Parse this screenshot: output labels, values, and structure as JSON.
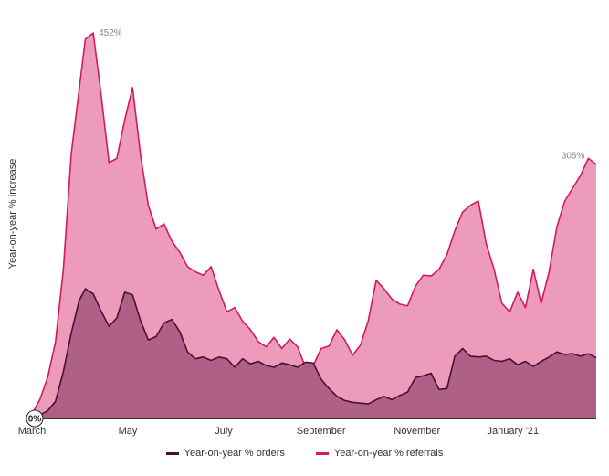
{
  "chart_data": {
    "type": "area",
    "ylabel": "Year-on-year % increase",
    "xlabel": "",
    "x_tick_labels": [
      "March",
      "May",
      "July",
      "September",
      "November",
      "January '21"
    ],
    "ylim": [
      0,
      480
    ],
    "grid": false,
    "legend_position": "bottom",
    "zero_label": "0%",
    "annotations": [
      {
        "series": "referrals",
        "text": "452%"
      },
      {
        "series": "referrals",
        "text": "305%"
      }
    ],
    "colors": {
      "referrals_line": "#d6185e",
      "referrals_fill": "#ec9cba",
      "orders_line": "#4a1030",
      "orders_fill": "#a85b82",
      "axis": "#333333"
    },
    "series": [
      {
        "key": "orders",
        "name": "Year-on-year % orders",
        "points": [
          [
            "2020-03-01",
            0
          ],
          [
            "2020-03-06",
            4
          ],
          [
            "2020-03-11",
            9
          ],
          [
            "2020-03-16",
            20
          ],
          [
            "2020-03-21",
            55
          ],
          [
            "2020-03-26",
            100
          ],
          [
            "2020-03-31",
            138
          ],
          [
            "2020-04-04",
            152
          ],
          [
            "2020-04-09",
            146
          ],
          [
            "2020-04-14",
            126
          ],
          [
            "2020-04-19",
            108
          ],
          [
            "2020-04-24",
            118
          ],
          [
            "2020-04-29",
            148
          ],
          [
            "2020-05-04",
            145
          ],
          [
            "2020-05-09",
            115
          ],
          [
            "2020-05-14",
            92
          ],
          [
            "2020-05-19",
            96
          ],
          [
            "2020-05-24",
            112
          ],
          [
            "2020-05-29",
            116
          ],
          [
            "2020-06-03",
            102
          ],
          [
            "2020-06-08",
            78
          ],
          [
            "2020-06-13",
            70
          ],
          [
            "2020-06-18",
            72
          ],
          [
            "2020-06-23",
            68
          ],
          [
            "2020-06-28",
            72
          ],
          [
            "2020-07-03",
            70
          ],
          [
            "2020-07-08",
            60
          ],
          [
            "2020-07-13",
            70
          ],
          [
            "2020-07-18",
            64
          ],
          [
            "2020-07-23",
            67
          ],
          [
            "2020-07-28",
            62
          ],
          [
            "2020-08-02",
            60
          ],
          [
            "2020-08-07",
            65
          ],
          [
            "2020-08-12",
            63
          ],
          [
            "2020-08-17",
            60
          ],
          [
            "2020-08-22",
            66
          ],
          [
            "2020-08-27",
            65
          ],
          [
            "2020-09-01",
            46
          ],
          [
            "2020-09-06",
            35
          ],
          [
            "2020-09-11",
            26
          ],
          [
            "2020-09-16",
            21
          ],
          [
            "2020-09-21",
            19
          ],
          [
            "2020-09-26",
            18
          ],
          [
            "2020-10-01",
            17
          ],
          [
            "2020-10-06",
            22
          ],
          [
            "2020-10-11",
            26
          ],
          [
            "2020-10-16",
            22
          ],
          [
            "2020-10-21",
            27
          ],
          [
            "2020-10-26",
            31
          ],
          [
            "2020-10-31",
            48
          ],
          [
            "2020-11-05",
            50
          ],
          [
            "2020-11-10",
            53
          ],
          [
            "2020-11-15",
            34
          ],
          [
            "2020-11-20",
            35
          ],
          [
            "2020-11-25",
            73
          ],
          [
            "2020-11-30",
            82
          ],
          [
            "2020-12-05",
            73
          ],
          [
            "2020-12-10",
            72
          ],
          [
            "2020-12-15",
            73
          ],
          [
            "2020-12-20",
            68
          ],
          [
            "2020-12-25",
            67
          ],
          [
            "2020-12-30",
            70
          ],
          [
            "2021-01-04",
            63
          ],
          [
            "2021-01-09",
            67
          ],
          [
            "2021-01-14",
            61
          ],
          [
            "2021-01-19",
            67
          ],
          [
            "2021-01-24",
            72
          ],
          [
            "2021-01-29",
            78
          ],
          [
            "2021-02-03",
            75
          ],
          [
            "2021-02-08",
            76
          ],
          [
            "2021-02-13",
            73
          ],
          [
            "2021-02-18",
            76
          ],
          [
            "2021-02-23",
            71
          ]
        ]
      },
      {
        "key": "referrals",
        "name": "Year-on-year % referrals",
        "points": [
          [
            "2020-03-01",
            5
          ],
          [
            "2020-03-06",
            22
          ],
          [
            "2020-03-11",
            48
          ],
          [
            "2020-03-16",
            90
          ],
          [
            "2020-03-21",
            175
          ],
          [
            "2020-03-26",
            310
          ],
          [
            "2020-03-31",
            385
          ],
          [
            "2020-04-04",
            445
          ],
          [
            "2020-04-09",
            452
          ],
          [
            "2020-04-14",
            380
          ],
          [
            "2020-04-19",
            300
          ],
          [
            "2020-04-24",
            305
          ],
          [
            "2020-04-29",
            350
          ],
          [
            "2020-05-04",
            388
          ],
          [
            "2020-05-09",
            310
          ],
          [
            "2020-05-14",
            250
          ],
          [
            "2020-05-19",
            222
          ],
          [
            "2020-05-24",
            228
          ],
          [
            "2020-05-29",
            208
          ],
          [
            "2020-06-03",
            195
          ],
          [
            "2020-06-08",
            178
          ],
          [
            "2020-06-13",
            172
          ],
          [
            "2020-06-18",
            168
          ],
          [
            "2020-06-23",
            178
          ],
          [
            "2020-06-28",
            150
          ],
          [
            "2020-07-03",
            125
          ],
          [
            "2020-07-08",
            130
          ],
          [
            "2020-07-13",
            114
          ],
          [
            "2020-07-18",
            104
          ],
          [
            "2020-07-23",
            90
          ],
          [
            "2020-07-28",
            84
          ],
          [
            "2020-08-02",
            95
          ],
          [
            "2020-08-07",
            82
          ],
          [
            "2020-08-12",
            93
          ],
          [
            "2020-08-17",
            84
          ],
          [
            "2020-08-22",
            60
          ],
          [
            "2020-08-27",
            62
          ],
          [
            "2020-09-01",
            82
          ],
          [
            "2020-09-06",
            85
          ],
          [
            "2020-09-11",
            104
          ],
          [
            "2020-09-16",
            92
          ],
          [
            "2020-09-21",
            74
          ],
          [
            "2020-09-26",
            86
          ],
          [
            "2020-10-01",
            115
          ],
          [
            "2020-10-06",
            162
          ],
          [
            "2020-10-11",
            152
          ],
          [
            "2020-10-16",
            140
          ],
          [
            "2020-10-21",
            134
          ],
          [
            "2020-10-26",
            132
          ],
          [
            "2020-10-31",
            155
          ],
          [
            "2020-11-05",
            168
          ],
          [
            "2020-11-10",
            167
          ],
          [
            "2020-11-15",
            175
          ],
          [
            "2020-11-20",
            192
          ],
          [
            "2020-11-25",
            220
          ],
          [
            "2020-11-30",
            242
          ],
          [
            "2020-12-05",
            250
          ],
          [
            "2020-12-10",
            255
          ],
          [
            "2020-12-15",
            205
          ],
          [
            "2020-12-20",
            175
          ],
          [
            "2020-12-25",
            135
          ],
          [
            "2020-12-30",
            125
          ],
          [
            "2021-01-04",
            148
          ],
          [
            "2021-01-09",
            130
          ],
          [
            "2021-01-14",
            175
          ],
          [
            "2021-01-19",
            135
          ],
          [
            "2021-01-24",
            172
          ],
          [
            "2021-01-29",
            225
          ],
          [
            "2021-02-03",
            255
          ],
          [
            "2021-02-08",
            270
          ],
          [
            "2021-02-13",
            285
          ],
          [
            "2021-02-18",
            305
          ],
          [
            "2021-02-23",
            298
          ]
        ]
      }
    ]
  }
}
